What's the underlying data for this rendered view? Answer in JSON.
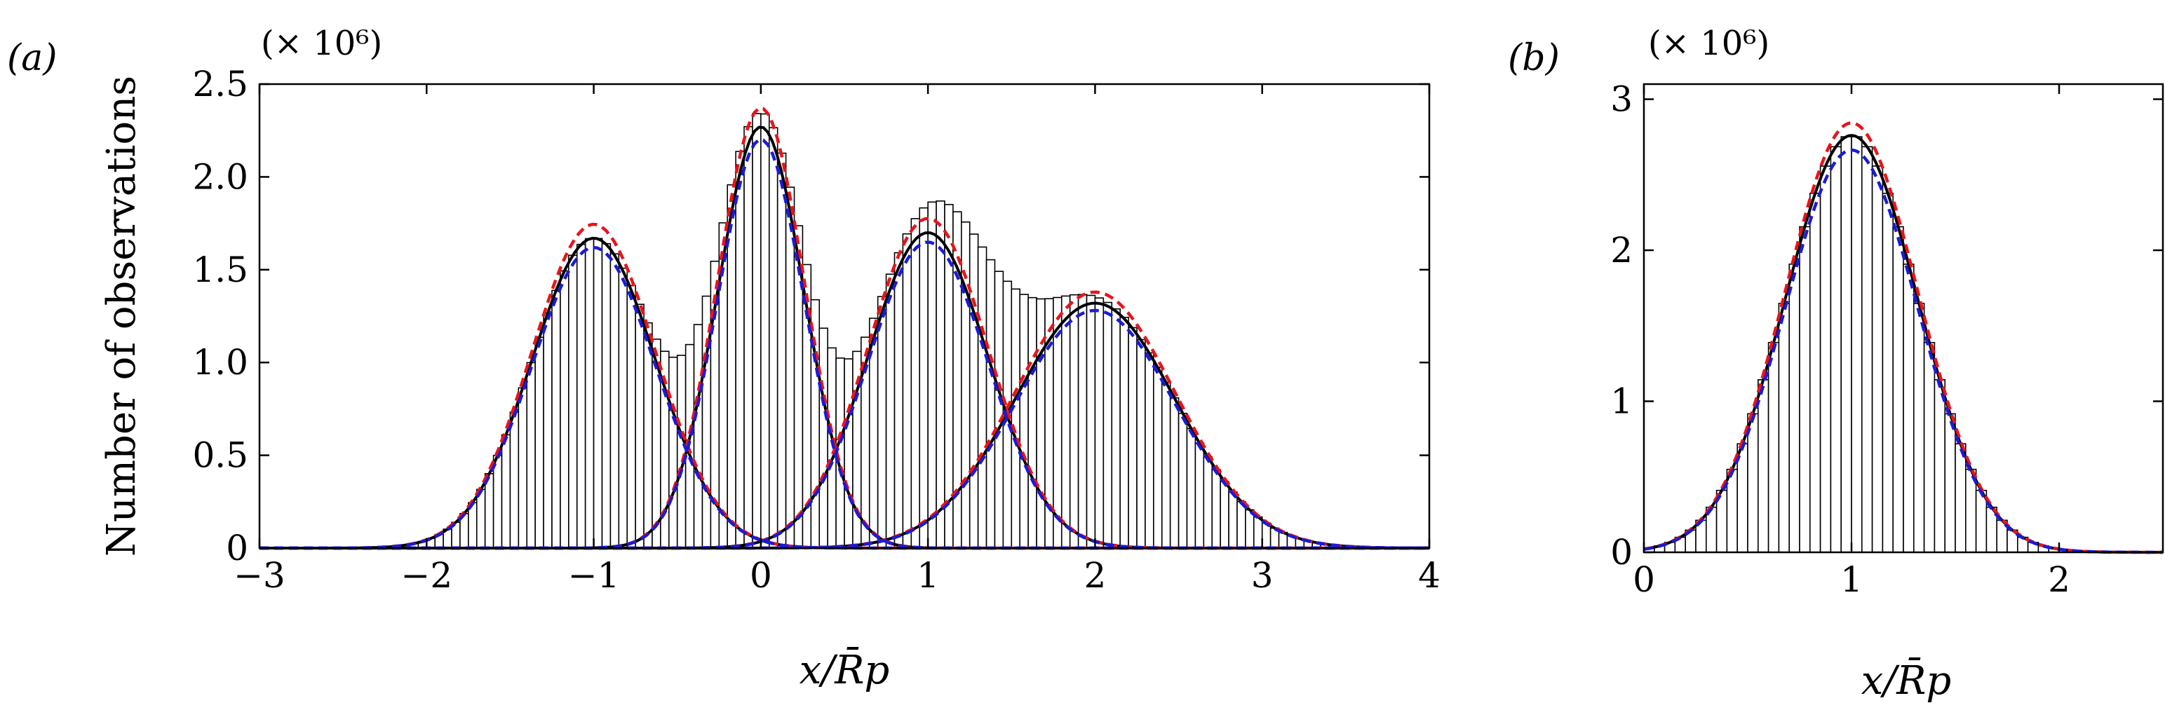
{
  "chart_data": [
    {
      "type": "bar",
      "panel_label": "(a)",
      "multiplier": "(× 10⁶)",
      "xlabel": "x/R̄p",
      "ylabel": "Number of observations",
      "xlim": [
        -3,
        4
      ],
      "ylim": [
        0,
        2.5
      ],
      "xticks": [
        "−3",
        "−2",
        "−1",
        "0",
        "1",
        "2",
        "3",
        "4"
      ],
      "xtick_values": [
        -3,
        -2,
        -1,
        0,
        1,
        2,
        3,
        4
      ],
      "yticks": [
        "0",
        "0.5",
        "1.0",
        "1.5",
        "2.0",
        "2.5"
      ],
      "ytick_values": [
        0,
        0.5,
        1.0,
        1.5,
        2.0,
        2.5
      ],
      "bin_width": 0.05,
      "components": [
        {
          "mean": -1.0,
          "std": 0.37,
          "peak": 1.67
        },
        {
          "mean": 0.0,
          "std": 0.26,
          "peak": 2.27
        },
        {
          "mean": 1.0,
          "std": 0.36,
          "peak": 1.7
        },
        {
          "mean": 2.0,
          "std": 0.48,
          "peak": 1.32
        }
      ],
      "curves": [
        {
          "style": "black-solid",
          "color": "#000000",
          "peak_scale": 1.0
        },
        {
          "style": "red-dashed",
          "color": "#e8141b",
          "peak_scale": 1.045
        },
        {
          "style": "blue-dashed",
          "color": "#1b1bd6",
          "peak_scale": 0.97
        }
      ]
    },
    {
      "type": "bar",
      "panel_label": "(b)",
      "multiplier": "(× 10⁶)",
      "xlabel": "x/R̄p",
      "ylabel": "",
      "xlim": [
        0,
        2.5
      ],
      "ylim": [
        0,
        3.1
      ],
      "xticks": [
        "0",
        "1",
        "2"
      ],
      "xtick_values": [
        0,
        1,
        2
      ],
      "yticks": [
        "0",
        "1",
        "2",
        "3"
      ],
      "ytick_values": [
        0,
        1,
        2,
        3
      ],
      "bin_width": 0.05,
      "components": [
        {
          "mean": 1.0,
          "std": 0.32,
          "peak": 2.76
        }
      ],
      "curves": [
        {
          "style": "black-solid",
          "color": "#000000",
          "peak_scale": 1.0
        },
        {
          "style": "red-dashed",
          "color": "#e8141b",
          "peak_scale": 1.03
        },
        {
          "style": "blue-dashed",
          "color": "#1b1bd6",
          "peak_scale": 0.965
        }
      ]
    }
  ]
}
